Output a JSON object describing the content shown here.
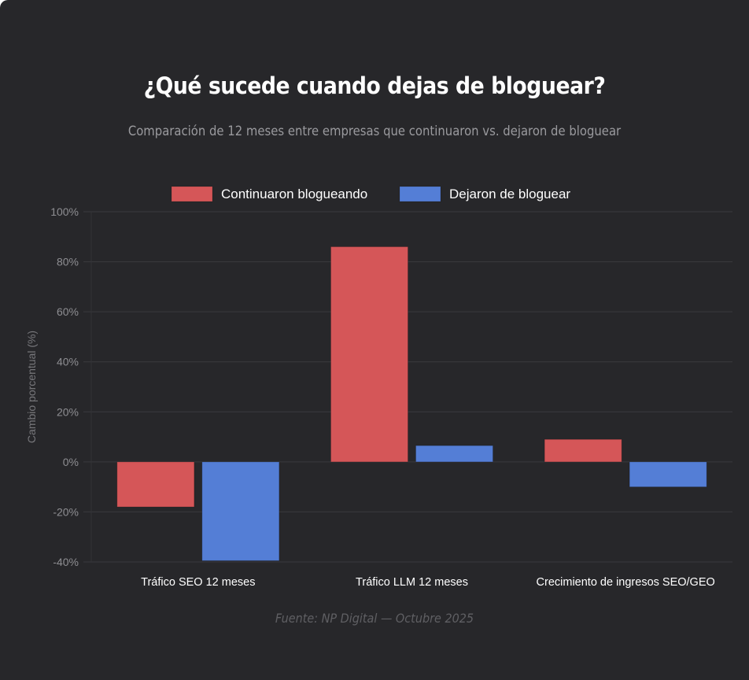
{
  "header": {
    "title": "¿Qué sucede cuando dejas de bloguear?",
    "subtitle": "Comparación de 12 meses entre empresas que continuaron vs. dejaron de bloguear"
  },
  "footer": {
    "source": "Fuente: NP Digital — Octubre 2025"
  },
  "colors": {
    "background": "#27272a",
    "continued": "#d55658",
    "stopped": "#547ed6",
    "grid": "#3a3a3e"
  },
  "chart_data": {
    "type": "bar",
    "title": "¿Qué sucede cuando dejas de bloguear?",
    "subtitle": "Comparación de 12 meses entre empresas que continuaron vs. dejaron de bloguear",
    "categories": [
      "Tráfico SEO 12 meses",
      "Tráfico LLM 12 meses",
      "Crecimiento de ingresos SEO/GEO"
    ],
    "series": [
      {
        "name": "Continuaron blogueando",
        "color": "#d55658",
        "values": [
          -18,
          86,
          9
        ]
      },
      {
        "name": "Dejaron de bloguear",
        "color": "#547ed6",
        "values": [
          -39.5,
          6.5,
          -10
        ]
      }
    ],
    "xlabel": "",
    "ylabel": "Cambio porcentual (%)",
    "ylim": [
      -40,
      100
    ],
    "yticks": [
      100,
      80,
      60,
      40,
      20,
      0,
      -20,
      -40
    ],
    "ytick_labels": [
      "100%",
      "80%",
      "60%",
      "40%",
      "20%",
      "0%",
      "-20%",
      "-40%"
    ],
    "grid": true,
    "legend": "top-center"
  }
}
